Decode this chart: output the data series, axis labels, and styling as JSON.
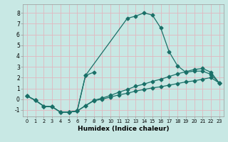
{
  "xlabel": "Humidex (Indice chaleur)",
  "xlim": [
    -0.5,
    23.5
  ],
  "ylim": [
    -1.6,
    8.8
  ],
  "yticks": [
    -1,
    0,
    1,
    2,
    3,
    4,
    5,
    6,
    7,
    8
  ],
  "xticks": [
    0,
    1,
    2,
    3,
    4,
    5,
    6,
    7,
    8,
    9,
    10,
    11,
    12,
    13,
    14,
    15,
    16,
    17,
    18,
    19,
    20,
    21,
    22,
    23
  ],
  "bg_color": "#c8e8e4",
  "grid_color": "#e0b8c0",
  "line_color": "#1a7068",
  "line1_x": [
    0,
    1,
    2,
    3,
    4,
    5,
    6,
    7,
    12,
    13,
    14,
    15,
    16,
    17,
    18,
    19,
    20,
    21,
    22,
    23
  ],
  "line1_y": [
    0.3,
    -0.1,
    -0.65,
    -0.7,
    -1.2,
    -1.2,
    -1.1,
    2.2,
    7.5,
    7.7,
    8.0,
    7.8,
    6.6,
    4.4,
    3.1,
    2.5,
    2.6,
    2.6,
    2.3,
    1.5
  ],
  "line2_x": [
    0,
    1,
    2,
    3,
    4,
    5,
    6,
    7,
    8,
    9,
    10,
    11,
    12,
    13,
    14,
    15,
    16,
    17,
    18,
    19,
    20,
    21,
    22,
    23
  ],
  "line2_y": [
    0.3,
    -0.1,
    -0.65,
    -0.7,
    -1.2,
    -1.2,
    -1.1,
    -0.6,
    -0.15,
    0.0,
    0.2,
    0.4,
    0.55,
    0.75,
    0.9,
    1.05,
    1.15,
    1.3,
    1.45,
    1.6,
    1.7,
    1.85,
    2.0,
    1.5
  ],
  "line3_x": [
    0,
    1,
    2,
    3,
    4,
    5,
    6,
    7,
    8,
    9,
    10,
    11,
    12,
    13,
    14,
    15,
    16,
    17,
    18,
    19,
    20,
    21,
    22,
    23
  ],
  "line3_y": [
    0.3,
    -0.1,
    -0.65,
    -0.7,
    -1.2,
    -1.2,
    -1.1,
    -0.6,
    -0.1,
    0.1,
    0.35,
    0.65,
    0.9,
    1.2,
    1.4,
    1.65,
    1.85,
    2.1,
    2.35,
    2.55,
    2.75,
    2.85,
    2.5,
    1.5
  ],
  "line4_x": [
    5,
    6,
    7,
    8
  ],
  "line4_y": [
    -1.2,
    -1.1,
    2.2,
    2.5
  ],
  "marker": "D",
  "markersize": 2.5,
  "linewidth": 0.9
}
